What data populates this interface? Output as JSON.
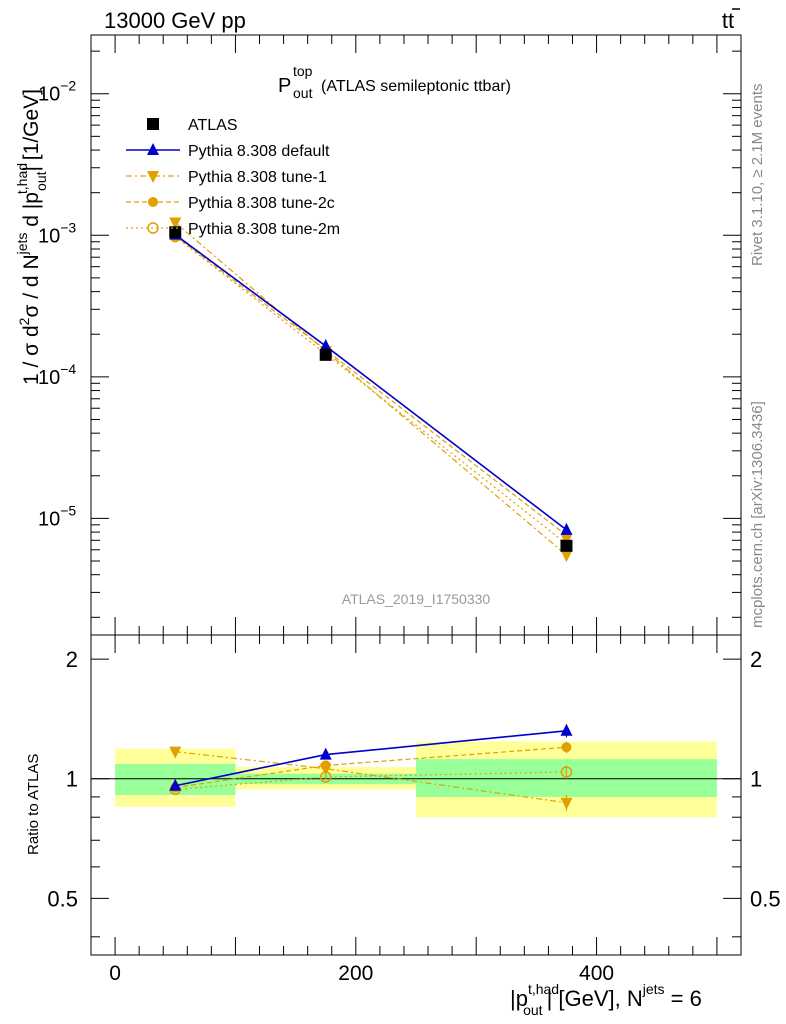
{
  "header": {
    "left": "13000 GeV pp",
    "right": "t",
    "right_bar": "t"
  },
  "title": {
    "symbol": "P",
    "sup": "top",
    "sub": "out",
    "rest": "(ATLAS semileptonic ttbar)"
  },
  "side_text": {
    "rivet": "Rivet 3.1.10, ≥ 2.1M events",
    "mcplots": "mcplots.cern.ch [arXiv:1306.3436]"
  },
  "analysis_id": "ATLAS_2019_I1750330",
  "main_ylabel": {
    "a": "1 / σ d",
    "sup2": "2",
    "b": "σ / d N",
    "sup_jets": "jets",
    "c": " d |p",
    "sup_thad": "t,had",
    "sub_out": "out",
    "d": "| [1/GeV]"
  },
  "ratio_ylabel": "Ratio to ATLAS",
  "xlabel": {
    "a": "|p",
    "sup": "t,had",
    "sub": "out",
    "b": "| [GeV], N",
    "sup2": "jets",
    "c": " = 6"
  },
  "colors": {
    "data": "#000000",
    "default": "#0000cc",
    "tunes": "#e0a000",
    "band_inner": "#99ff99",
    "band_outer": "#ffff99"
  },
  "chart_data": {
    "type": "line",
    "x_bins": [
      [
        0,
        100
      ],
      [
        100,
        250
      ],
      [
        250,
        500
      ]
    ],
    "x": [
      50,
      175,
      375
    ],
    "xlim": [
      -20,
      520
    ],
    "main": {
      "scale": "log",
      "ylim": [
        1.5e-06,
        0.026
      ],
      "y_tick_labels": [
        {
          "value": 0.01,
          "mant": "10",
          "exp": "−2"
        },
        {
          "value": 0.001,
          "mant": "10",
          "exp": "−3"
        },
        {
          "value": 0.0001,
          "mant": "10",
          "exp": "−4"
        },
        {
          "value": 1e-05,
          "mant": "10",
          "exp": "−5"
        }
      ]
    },
    "ratio": {
      "scale": "log",
      "ylim": [
        0.36,
        2.3
      ],
      "y_tick_labels": [
        {
          "value": 0.5,
          "label": "0.5"
        },
        {
          "value": 1,
          "label": "1"
        },
        {
          "value": 2,
          "label": "2"
        }
      ],
      "band_inner": [
        [
          0.91,
          1.09
        ],
        [
          0.97,
          1.03
        ],
        [
          0.9,
          1.12
        ]
      ],
      "band_outer": [
        [
          0.85,
          1.19
        ],
        [
          0.94,
          1.07
        ],
        [
          0.8,
          1.24
        ]
      ]
    },
    "x_tick_labels": [
      {
        "value": 0,
        "label": "0"
      },
      {
        "value": 200,
        "label": "200"
      },
      {
        "value": 400,
        "label": "400"
      }
    ],
    "series": [
      {
        "name": "ATLAS",
        "values": [
          0.00105,
          0.000143,
          6.4e-06
        ],
        "ratio": [
          1,
          1,
          1
        ],
        "ratio_err": [
          0,
          0,
          0
        ]
      },
      {
        "name": "Pythia 8.308 default",
        "values": [
          0.00101,
          0.000165,
          8.3e-06
        ],
        "ratio": [
          0.96,
          1.15,
          1.32
        ],
        "ratio_err": [
          0.01,
          0.015,
          0.05
        ]
      },
      {
        "name": "Pythia 8.308 tune-1",
        "values": [
          0.00123,
          0.000152,
          5.5e-06
        ],
        "ratio": [
          1.17,
          1.06,
          0.87
        ],
        "ratio_err": [
          0.01,
          0.015,
          0.04
        ]
      },
      {
        "name": "Pythia 8.308 tune-2c",
        "values": [
          0.00099,
          0.000155,
          7.6e-06
        ],
        "ratio": [
          0.95,
          1.08,
          1.2
        ],
        "ratio_err": [
          0.01,
          0.015,
          0.04
        ]
      },
      {
        "name": "Pythia 8.308 tune-2m",
        "values": [
          0.00098,
          0.000145,
          6.6e-06
        ],
        "ratio": [
          0.94,
          1.01,
          1.04
        ],
        "ratio_err": [
          0.01,
          0.015,
          0.04
        ]
      }
    ]
  }
}
